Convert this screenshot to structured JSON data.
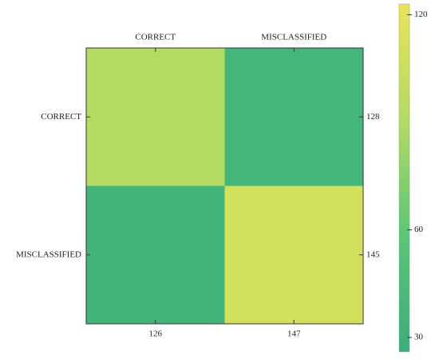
{
  "chart_data": {
    "type": "heatmap",
    "x_categories": [
      "CORRECT",
      "MISCLASSIFIED"
    ],
    "y_categories": [
      "CORRECT",
      "MISCLASSIFIED"
    ],
    "values": [
      [
        91,
        37
      ],
      [
        35,
        110
      ]
    ],
    "row_totals": [
      128,
      145
    ],
    "column_totals": [
      126,
      147
    ],
    "zlim": [
      26,
      123
    ],
    "zticks": [
      30,
      60,
      120
    ],
    "colors": [
      "#3aae7b",
      "#5ac678",
      "#b3db62",
      "#e8e458"
    ]
  }
}
